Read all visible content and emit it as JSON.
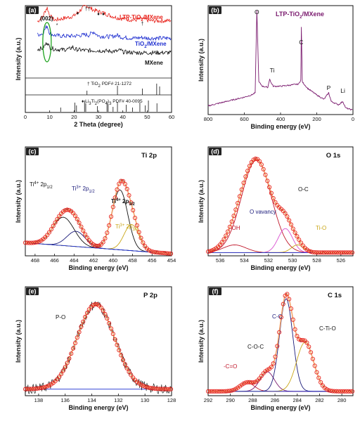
{
  "colors": {
    "red": "#e8231c",
    "blue": "#1f2fd0",
    "black": "#111111",
    "purple": "#7a1a6e",
    "olive": "#c9a617",
    "pink": "#d94fd0",
    "navy": "#1a1a7a",
    "orange_fill": "#f2a36b"
  },
  "chart_data": [
    {
      "panel": "(a)",
      "type": "line",
      "xlabel": "2 Theta (degree)",
      "ylabel": "Intensity (a.u.)",
      "xlim": [
        0,
        60
      ],
      "xticks": [
        "0",
        "10",
        "20",
        "30",
        "40",
        "50",
        "60"
      ],
      "series": [
        {
          "name": "LTP-TiO2/MXene",
          "color": "#e8231c",
          "x": [
            5,
            7,
            8.5,
            9,
            10,
            12,
            15,
            18,
            20,
            22,
            24,
            25.3,
            26,
            28,
            30,
            32,
            35,
            38,
            40,
            42,
            45,
            48,
            50,
            52,
            55,
            58,
            60
          ],
          "y": [
            0.78,
            0.84,
            0.95,
            0.97,
            0.86,
            0.8,
            0.82,
            0.84,
            0.86,
            0.92,
            0.98,
            1.0,
            0.98,
            0.94,
            0.92,
            0.9,
            0.86,
            0.83,
            0.82,
            0.81,
            0.8,
            0.82,
            0.8,
            0.79,
            0.79,
            0.79,
            0.8
          ]
        },
        {
          "name": "TiO2/MXene",
          "color": "#1f2fd0",
          "x": [
            5,
            7,
            8.5,
            9,
            10,
            12,
            15,
            20,
            25.3,
            26,
            28,
            30,
            35,
            37.8,
            40,
            45,
            48,
            50,
            55,
            60
          ],
          "y": [
            0.6,
            0.61,
            0.7,
            0.72,
            0.62,
            0.59,
            0.58,
            0.58,
            0.6,
            0.59,
            0.64,
            0.58,
            0.57,
            0.59,
            0.56,
            0.55,
            0.56,
            0.55,
            0.55,
            0.55
          ]
        },
        {
          "name": "MXene",
          "color": "#111111",
          "x": [
            5,
            7,
            8.5,
            9,
            10,
            12,
            15,
            18,
            19.5,
            20,
            22,
            25,
            28,
            30,
            35,
            38,
            39,
            40,
            45,
            50,
            55,
            60
          ],
          "y": [
            0.4,
            0.41,
            0.47,
            0.5,
            0.42,
            0.4,
            0.39,
            0.4,
            0.43,
            0.4,
            0.39,
            0.38,
            0.38,
            0.38,
            0.37,
            0.37,
            0.39,
            0.36,
            0.35,
            0.35,
            0.35,
            0.35
          ]
        }
      ],
      "reference": [
        {
          "label": "TiO2 PDF# 21-1272",
          "symbol": "†",
          "lines": [
            25.3,
            37.8,
            48.0,
            53.9,
            55.1
          ]
        },
        {
          "label": "Li3Ti2(PO4)3 PDF# 40-0095",
          "symbol": "♦",
          "lines": [
            14.5,
            20.3,
            21.0,
            24.3,
            24.8,
            29.6,
            33.5,
            34.0,
            36.0,
            37.8,
            41.4,
            44.0,
            47.0,
            49.2,
            50.5,
            54.0
          ]
        }
      ],
      "annotations": [
        "(002)",
        "*",
        "♦",
        "†",
        "♦",
        "♦",
        "†"
      ]
    },
    {
      "panel": "(b)",
      "type": "line",
      "title": "LTP-TiO2/MXene",
      "xlabel": "Binding energy (eV)",
      "ylabel": "Intensity (a.u.)",
      "xlim": [
        800,
        0
      ],
      "xticks": [
        "800",
        "600",
        "400",
        "200",
        "0"
      ],
      "peak_labels": [
        "O",
        "Ti",
        "C",
        "P",
        "Li"
      ],
      "series": [
        {
          "name": "",
          "color": "#7a1a6e",
          "x": [
            800,
            750,
            700,
            650,
            600,
            560,
            540,
            531,
            520,
            500,
            470,
            460,
            455,
            440,
            400,
            350,
            300,
            288,
            285,
            280,
            250,
            200,
            160,
            134,
            120,
            80,
            56,
            40,
            0
          ],
          "y": [
            0.08,
            0.1,
            0.12,
            0.14,
            0.16,
            0.18,
            0.2,
            0.96,
            0.3,
            0.26,
            0.25,
            0.33,
            0.3,
            0.26,
            0.26,
            0.27,
            0.28,
            0.32,
            0.8,
            0.3,
            0.24,
            0.18,
            0.14,
            0.2,
            0.12,
            0.09,
            0.12,
            0.06,
            0.04
          ]
        }
      ]
    },
    {
      "panel": "(c)",
      "type": "line",
      "title": "Ti 2p",
      "xlabel": "Binding energy (eV)",
      "ylabel": "Intensity (a.u.)",
      "xlim": [
        469,
        454
      ],
      "xticks": [
        "468",
        "466",
        "464",
        "462",
        "460",
        "458",
        "456",
        "454"
      ],
      "peak_labels": [
        "Ti4+ 2p1/2",
        "Ti3+ 2p1/2",
        "Ti4+ 2p3/2",
        "Ti3+ 2p3/2"
      ],
      "peaks": [
        {
          "name": "Ti4+ 2p1/2",
          "center": 465.1,
          "height": 0.26,
          "fwhm": 2.6,
          "color": "#111111"
        },
        {
          "name": "Ti3+ 2p1/2",
          "center": 463.8,
          "height": 0.14,
          "fwhm": 2.2,
          "color": "#1a1a7a"
        },
        {
          "name": "Ti4+ 2p3/2",
          "center": 459.3,
          "height": 0.55,
          "fwhm": 1.9,
          "color": "#111111"
        },
        {
          "name": "Ti3+ 2p3/2",
          "center": 458.1,
          "height": 0.24,
          "fwhm": 1.8,
          "color": "#c9a617"
        }
      ],
      "background": {
        "x": [
          469,
          454
        ],
        "y": [
          0.12,
          0.02
        ]
      }
    },
    {
      "panel": "(d)",
      "type": "line",
      "title": "O 1s",
      "xlabel": "Binding energy (eV)",
      "ylabel": "Intensity (a.u.)",
      "xlim": [
        537,
        525
      ],
      "xticks": [
        "536",
        "534",
        "532",
        "530",
        "528",
        "526"
      ],
      "peak_labels": [
        "O-C",
        "O vavancy",
        "-OH",
        "Ti-O"
      ],
      "peaks": [
        {
          "name": "-OH",
          "center": 534.8,
          "height": 0.07,
          "fwhm": 2.2,
          "color": "#c0182b"
        },
        {
          "name": "O-C",
          "center": 533.0,
          "height": 0.85,
          "fwhm": 2.9,
          "color": "#c0182b"
        },
        {
          "name": "O vavancy",
          "center": 530.6,
          "height": 0.22,
          "fwhm": 1.4,
          "color": "#d94fd0"
        },
        {
          "name": "Ti-O",
          "center": 529.6,
          "height": 0.07,
          "fwhm": 1.2,
          "color": "#c9a617"
        }
      ],
      "background": {
        "x": [
          537,
          525
        ],
        "y": [
          0.03,
          0.03
        ]
      }
    },
    {
      "panel": "(e)",
      "type": "line",
      "title": "P 2p",
      "xlabel": "Binding energy (eV)",
      "ylabel": "Intensity (a.u.)",
      "xlim": [
        139,
        128
      ],
      "xticks": [
        "138",
        "136",
        "134",
        "132",
        "130",
        "128"
      ],
      "peak_labels": [
        "P-O"
      ],
      "peaks": [
        {
          "name": "P-O",
          "center": 133.7,
          "height": 0.78,
          "fwhm": 3.3,
          "color": "#c0182b"
        }
      ],
      "background": {
        "x": [
          139,
          128
        ],
        "y": [
          0.06,
          0.06
        ]
      }
    },
    {
      "panel": "(f)",
      "type": "line",
      "title": "C 1s",
      "xlabel": "Binding energy (eV)",
      "ylabel": "Intensity (a.u.)",
      "xlim": [
        292,
        279
      ],
      "xticks": [
        "292",
        "290",
        "288",
        "286",
        "284",
        "282",
        "280"
      ],
      "peak_labels": [
        "-C=O",
        "C-O-C",
        "C-C",
        "C-Ti-O"
      ],
      "peaks": [
        {
          "name": "-C=O",
          "center": 288.5,
          "height": 0.08,
          "fwhm": 1.5,
          "color": "#c0182b"
        },
        {
          "name": "C-O-C",
          "center": 286.7,
          "height": 0.18,
          "fwhm": 1.5,
          "color": "#7a1a6e"
        },
        {
          "name": "C-C",
          "center": 285.0,
          "height": 0.85,
          "fwhm": 1.4,
          "color": "#1a1a7a"
        },
        {
          "name": "C-Ti-O",
          "center": 283.3,
          "height": 0.45,
          "fwhm": 1.8,
          "color": "#c9a617"
        }
      ],
      "background": {
        "x": [
          292,
          279
        ],
        "y": [
          0.04,
          0.04
        ]
      }
    }
  ]
}
